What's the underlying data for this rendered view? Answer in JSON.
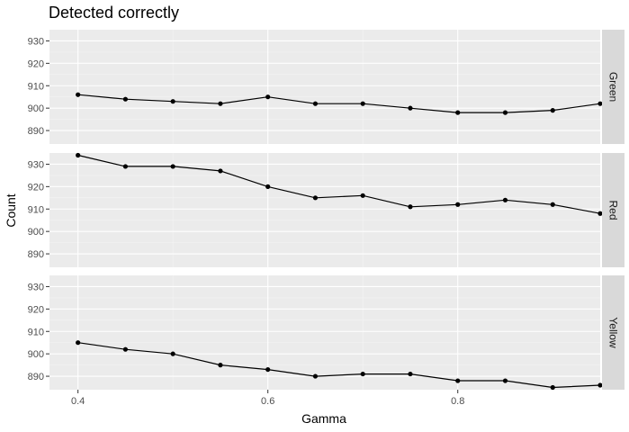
{
  "chart_data": {
    "type": "line",
    "title": "Detected correctly",
    "xlabel": "Gamma",
    "ylabel": "Count",
    "x": [
      0.4,
      0.45,
      0.5,
      0.55,
      0.6,
      0.65,
      0.7,
      0.75,
      0.8,
      0.85,
      0.9,
      0.95
    ],
    "xlim": [
      0.37,
      0.95
    ],
    "x_ticks": [
      0.4,
      0.6,
      0.8
    ],
    "x_tick_labels": [
      "0.4",
      "0.6",
      "0.8"
    ],
    "ylim": [
      884,
      935
    ],
    "y_ticks": [
      890,
      900,
      910,
      920,
      930
    ],
    "y_tick_labels": [
      "890",
      "900",
      "910",
      "920",
      "930"
    ],
    "grid": true,
    "facets": "rows",
    "colors": {
      "panel_bg": "#ebebeb",
      "grid_major": "#ffffff",
      "grid_minor": "#f4f4f4",
      "strip_bg": "#d9d9d9",
      "line": "#000000",
      "tick": "#333333"
    },
    "series": [
      {
        "name": "Green",
        "values": [
          906,
          904,
          903,
          902,
          905,
          902,
          902,
          900,
          898,
          898,
          899,
          902
        ]
      },
      {
        "name": "Red",
        "values": [
          934,
          929,
          929,
          927,
          920,
          915,
          916,
          911,
          912,
          914,
          912,
          908
        ]
      },
      {
        "name": "Yellow",
        "values": [
          905,
          902,
          900,
          895,
          893,
          890,
          891,
          891,
          888,
          888,
          885,
          886
        ]
      }
    ]
  }
}
